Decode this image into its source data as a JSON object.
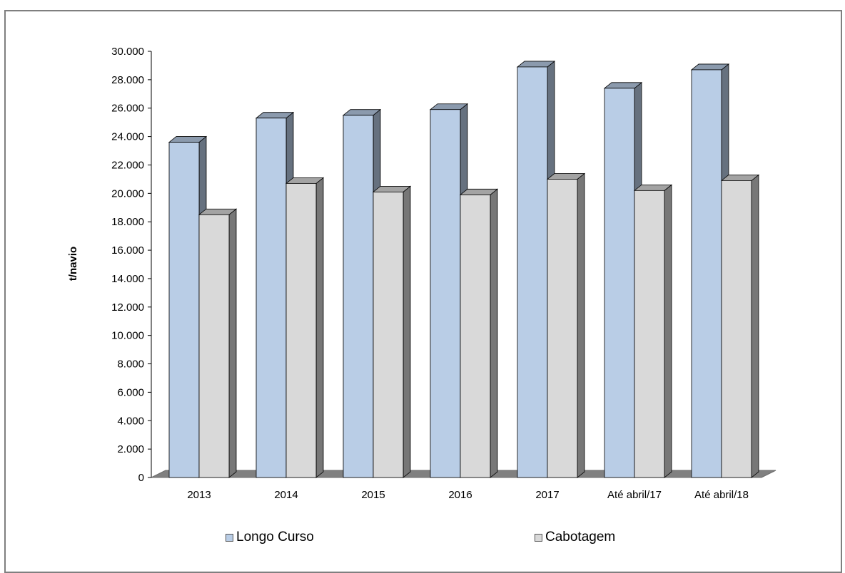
{
  "chart_data": {
    "type": "bar",
    "title": "",
    "xlabel": "",
    "ylabel": "t/navio",
    "ylim": [
      0,
      30000
    ],
    "ytick_step": 2000,
    "ytick_labels": [
      "0",
      "2.000",
      "4.000",
      "6.000",
      "8.000",
      "10.000",
      "12.000",
      "14.000",
      "16.000",
      "18.000",
      "20.000",
      "22.000",
      "24.000",
      "26.000",
      "28.000",
      "30.000"
    ],
    "categories": [
      "2013",
      "2014",
      "2015",
      "2016",
      "2017",
      "Até abril/17",
      "Até abril/18"
    ],
    "series": [
      {
        "name": "Longo Curso",
        "color": "#b9cde6",
        "values": [
          23600,
          25300,
          25500,
          25900,
          28900,
          27400,
          28700
        ]
      },
      {
        "name": "Cabotagem",
        "color": "#d9d9d9",
        "values": [
          18500,
          20700,
          20100,
          19900,
          21000,
          20200,
          20900
        ]
      }
    ],
    "legend": "bottom",
    "grid": false
  }
}
